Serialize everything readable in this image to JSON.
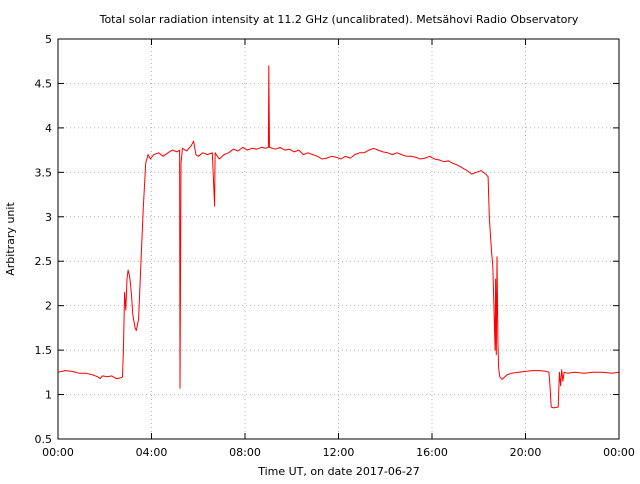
{
  "chart_data": {
    "type": "line",
    "title": "Total solar radiation intensity at 11.2 GHz (uncalibrated). Metsähovi Radio Observatory",
    "xlabel": "Time UT, on date 2017-06-27",
    "ylabel": "Arbitrary unit",
    "x_unit": "hours UT",
    "xlim": [
      0,
      24
    ],
    "ylim": [
      0.5,
      5
    ],
    "grid": true,
    "line_color": "#ff0000",
    "x_ticks": [
      {
        "value": 0,
        "label": "00:00"
      },
      {
        "value": 4,
        "label": "04:00"
      },
      {
        "value": 8,
        "label": "08:00"
      },
      {
        "value": 12,
        "label": "12:00"
      },
      {
        "value": 16,
        "label": "16:00"
      },
      {
        "value": 20,
        "label": "20:00"
      },
      {
        "value": 24,
        "label": "00:00"
      }
    ],
    "y_ticks": [
      {
        "value": 0.5,
        "label": "0.5"
      },
      {
        "value": 1,
        "label": "1"
      },
      {
        "value": 1.5,
        "label": "1.5"
      },
      {
        "value": 2,
        "label": "2"
      },
      {
        "value": 2.5,
        "label": "2.5"
      },
      {
        "value": 3,
        "label": "3"
      },
      {
        "value": 3.5,
        "label": "3.5"
      },
      {
        "value": 4,
        "label": "4"
      },
      {
        "value": 4.5,
        "label": "4.5"
      },
      {
        "value": 5,
        "label": "5"
      }
    ],
    "series": [
      {
        "values": [
          [
            0.0,
            1.25
          ],
          [
            0.3,
            1.27
          ],
          [
            0.6,
            1.26
          ],
          [
            0.9,
            1.24
          ],
          [
            1.2,
            1.24
          ],
          [
            1.5,
            1.22
          ],
          [
            1.7,
            1.2
          ],
          [
            1.8,
            1.18
          ],
          [
            1.9,
            1.21
          ],
          [
            2.1,
            1.2
          ],
          [
            2.3,
            1.21
          ],
          [
            2.5,
            1.18
          ],
          [
            2.7,
            1.19
          ],
          [
            2.76,
            1.2
          ],
          [
            2.8,
            1.5
          ],
          [
            2.85,
            2.15
          ],
          [
            2.9,
            1.95
          ],
          [
            2.95,
            2.3
          ],
          [
            3.0,
            2.4
          ],
          [
            3.05,
            2.35
          ],
          [
            3.1,
            2.25
          ],
          [
            3.15,
            2.1
          ],
          [
            3.2,
            1.9
          ],
          [
            3.3,
            1.75
          ],
          [
            3.35,
            1.72
          ],
          [
            3.45,
            1.85
          ],
          [
            3.55,
            2.5
          ],
          [
            3.65,
            3.1
          ],
          [
            3.75,
            3.6
          ],
          [
            3.85,
            3.7
          ],
          [
            3.95,
            3.65
          ],
          [
            4.1,
            3.7
          ],
          [
            4.3,
            3.72
          ],
          [
            4.5,
            3.68
          ],
          [
            4.7,
            3.72
          ],
          [
            4.9,
            3.75
          ],
          [
            5.1,
            3.73
          ],
          [
            5.2,
            3.75
          ],
          [
            5.22,
            1.07
          ],
          [
            5.26,
            3.6
          ],
          [
            5.32,
            3.77
          ],
          [
            5.5,
            3.74
          ],
          [
            5.7,
            3.8
          ],
          [
            5.8,
            3.85
          ],
          [
            5.9,
            3.7
          ],
          [
            6.0,
            3.68
          ],
          [
            6.2,
            3.72
          ],
          [
            6.4,
            3.7
          ],
          [
            6.6,
            3.72
          ],
          [
            6.7,
            3.12
          ],
          [
            6.72,
            3.72
          ],
          [
            6.9,
            3.65
          ],
          [
            7.1,
            3.7
          ],
          [
            7.3,
            3.72
          ],
          [
            7.5,
            3.76
          ],
          [
            7.7,
            3.74
          ],
          [
            7.9,
            3.78
          ],
          [
            8.1,
            3.75
          ],
          [
            8.3,
            3.77
          ],
          [
            8.5,
            3.76
          ],
          [
            8.7,
            3.78
          ],
          [
            8.9,
            3.77
          ],
          [
            9.0,
            3.78
          ],
          [
            9.02,
            4.7
          ],
          [
            9.05,
            3.78
          ],
          [
            9.3,
            3.76
          ],
          [
            9.5,
            3.78
          ],
          [
            9.7,
            3.75
          ],
          [
            9.9,
            3.76
          ],
          [
            10.1,
            3.73
          ],
          [
            10.3,
            3.75
          ],
          [
            10.5,
            3.7
          ],
          [
            10.7,
            3.72
          ],
          [
            10.9,
            3.7
          ],
          [
            11.1,
            3.68
          ],
          [
            11.3,
            3.65
          ],
          [
            11.5,
            3.66
          ],
          [
            11.7,
            3.68
          ],
          [
            11.9,
            3.67
          ],
          [
            12.1,
            3.65
          ],
          [
            12.3,
            3.68
          ],
          [
            12.5,
            3.66
          ],
          [
            12.7,
            3.7
          ],
          [
            12.9,
            3.72
          ],
          [
            13.1,
            3.72
          ],
          [
            13.3,
            3.75
          ],
          [
            13.5,
            3.77
          ],
          [
            13.7,
            3.75
          ],
          [
            13.9,
            3.73
          ],
          [
            14.1,
            3.72
          ],
          [
            14.3,
            3.7
          ],
          [
            14.5,
            3.72
          ],
          [
            14.7,
            3.7
          ],
          [
            14.9,
            3.68
          ],
          [
            15.1,
            3.68
          ],
          [
            15.3,
            3.67
          ],
          [
            15.5,
            3.65
          ],
          [
            15.7,
            3.66
          ],
          [
            15.9,
            3.68
          ],
          [
            16.1,
            3.65
          ],
          [
            16.3,
            3.64
          ],
          [
            16.5,
            3.62
          ],
          [
            16.7,
            3.63
          ],
          [
            16.9,
            3.6
          ],
          [
            17.1,
            3.58
          ],
          [
            17.3,
            3.55
          ],
          [
            17.5,
            3.52
          ],
          [
            17.7,
            3.48
          ],
          [
            17.9,
            3.5
          ],
          [
            18.1,
            3.52
          ],
          [
            18.3,
            3.48
          ],
          [
            18.4,
            3.45
          ],
          [
            18.45,
            3.0
          ],
          [
            18.5,
            2.8
          ],
          [
            18.55,
            2.6
          ],
          [
            18.6,
            2.45
          ],
          [
            18.65,
            2.0
          ],
          [
            18.7,
            1.5
          ],
          [
            18.72,
            2.3
          ],
          [
            18.75,
            1.45
          ],
          [
            18.78,
            2.55
          ],
          [
            18.82,
            1.6
          ],
          [
            18.85,
            1.3
          ],
          [
            18.9,
            1.2
          ],
          [
            19.0,
            1.17
          ],
          [
            19.2,
            1.22
          ],
          [
            19.4,
            1.24
          ],
          [
            19.7,
            1.25
          ],
          [
            20.0,
            1.26
          ],
          [
            20.3,
            1.27
          ],
          [
            20.6,
            1.27
          ],
          [
            20.9,
            1.26
          ],
          [
            21.0,
            1.25
          ],
          [
            21.05,
            1.1
          ],
          [
            21.1,
            0.86
          ],
          [
            21.2,
            0.85
          ],
          [
            21.4,
            0.86
          ],
          [
            21.45,
            1.25
          ],
          [
            21.5,
            1.1
          ],
          [
            21.55,
            1.28
          ],
          [
            21.6,
            1.15
          ],
          [
            21.65,
            1.25
          ],
          [
            21.8,
            1.24
          ],
          [
            22.1,
            1.25
          ],
          [
            22.5,
            1.24
          ],
          [
            22.9,
            1.25
          ],
          [
            23.3,
            1.25
          ],
          [
            23.7,
            1.24
          ],
          [
            24.0,
            1.25
          ]
        ]
      }
    ]
  }
}
